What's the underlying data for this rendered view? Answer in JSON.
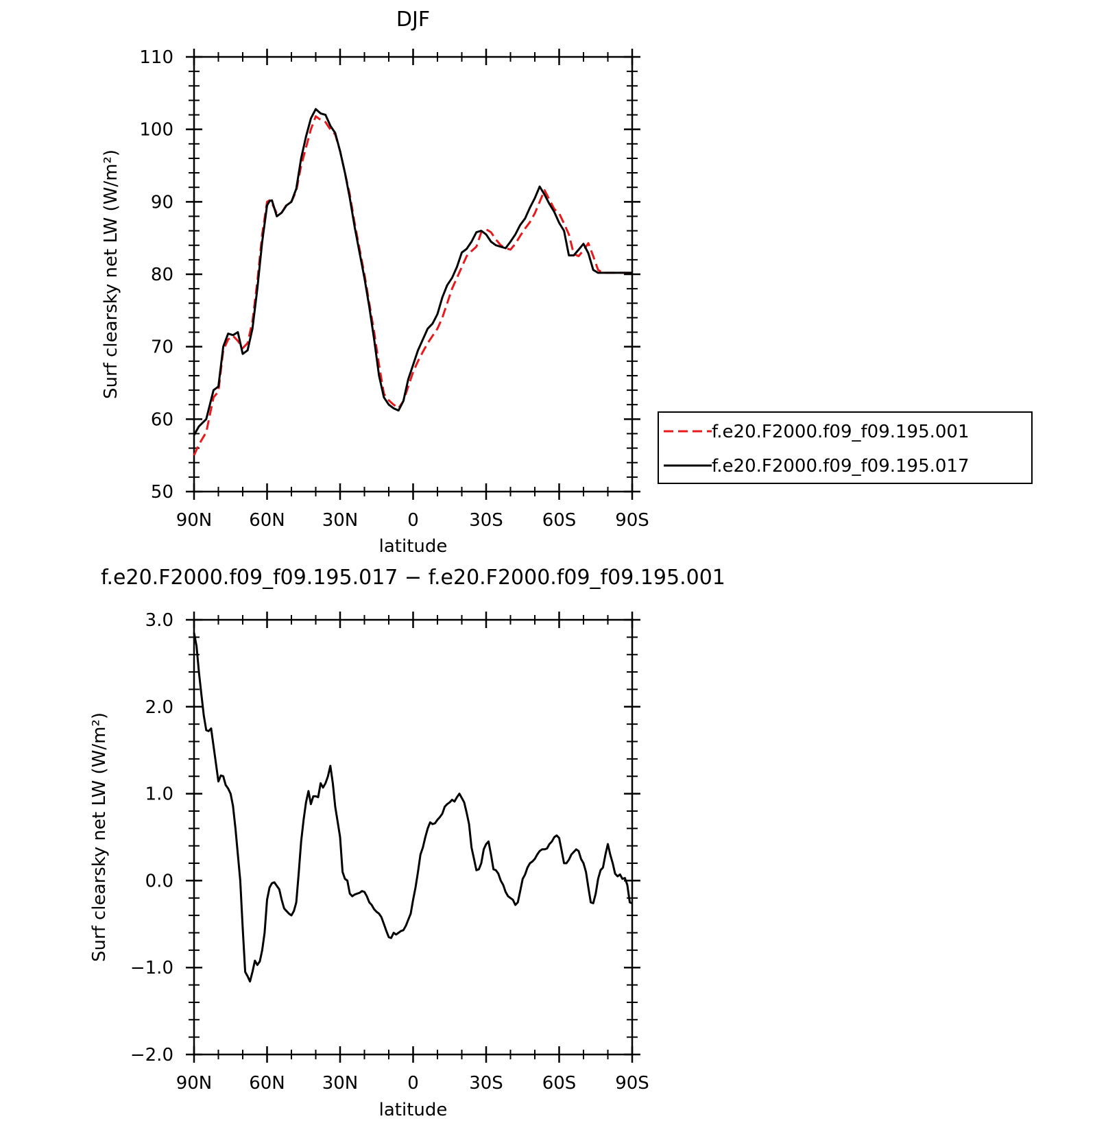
{
  "chart_data": [
    {
      "type": "line",
      "title": "DJF",
      "xlabel": "latitude",
      "ylabel": "Surf clearsky net LW (W/m²)",
      "xlim": [
        90,
        -90
      ],
      "ylim": [
        50,
        110
      ],
      "xticks": [
        {
          "value": 90,
          "label": "90N"
        },
        {
          "value": 60,
          "label": "60N"
        },
        {
          "value": 30,
          "label": "30N"
        },
        {
          "value": 0,
          "label": "0"
        },
        {
          "value": -30,
          "label": "30S"
        },
        {
          "value": -60,
          "label": "60S"
        },
        {
          "value": -90,
          "label": "90S"
        }
      ],
      "yticks": [
        {
          "value": 50,
          "label": "50"
        },
        {
          "value": 60,
          "label": "60"
        },
        {
          "value": 70,
          "label": "70"
        },
        {
          "value": 80,
          "label": "80"
        },
        {
          "value": 90,
          "label": "90"
        },
        {
          "value": 100,
          "label": "100"
        },
        {
          "value": 110,
          "label": "110"
        }
      ],
      "legend": {
        "position": "right"
      },
      "series": [
        {
          "name": "f.e20.F2000.f09_f09.195.001",
          "color": "#e8191b",
          "dash": true,
          "x": [
            90,
            88,
            85,
            82,
            80,
            78,
            76,
            74,
            72,
            70,
            68,
            66,
            64,
            62,
            60,
            59,
            58,
            56,
            54,
            52,
            50,
            48,
            46,
            44,
            42,
            40,
            38,
            36,
            34,
            32,
            30,
            28,
            26,
            24,
            22,
            20,
            18,
            16,
            14,
            12,
            10,
            8,
            6,
            4,
            2,
            0,
            -2,
            -4,
            -6,
            -8,
            -10,
            -12,
            -14,
            -16,
            -18,
            -20,
            -22,
            -24,
            -26,
            -28,
            -30,
            -32,
            -34,
            -36,
            -38,
            -40,
            -42,
            -44,
            -46,
            -48,
            -50,
            -52,
            -54,
            -56,
            -58,
            -60,
            -62,
            -64,
            -66,
            -68,
            -70,
            -72,
            -74,
            -76,
            -78,
            -80,
            -82,
            -84,
            -86,
            -88,
            -90
          ],
          "y": [
            55.0,
            56.5,
            58.2,
            63.0,
            63.8,
            69.5,
            71.0,
            71.5,
            70.8,
            69.8,
            70.5,
            73.5,
            79.0,
            85.5,
            90.0,
            90.2,
            89.8,
            88.4,
            88.5,
            89.6,
            90.0,
            91.5,
            95.0,
            97.5,
            100.0,
            101.8,
            101.3,
            101.0,
            100.0,
            99.3,
            97.0,
            94.0,
            91.0,
            87.0,
            83.5,
            80.0,
            76.0,
            72.0,
            67.5,
            63.5,
            62.6,
            62.0,
            61.5,
            62.5,
            64.5,
            66.5,
            68.0,
            69.3,
            70.5,
            71.5,
            72.5,
            74.0,
            76.0,
            78.0,
            79.5,
            81.0,
            82.5,
            83.2,
            83.8,
            85.8,
            86.2,
            85.8,
            84.8,
            84.0,
            83.6,
            83.4,
            84.2,
            85.3,
            86.3,
            87.2,
            88.4,
            90.0,
            91.6,
            90.3,
            89.0,
            88.4,
            87.0,
            85.5,
            82.8,
            82.5,
            83.3,
            84.3,
            82.5,
            80.6,
            80.2,
            80.2,
            80.2,
            80.2,
            80.2,
            80.2,
            80.2
          ]
        },
        {
          "name": "f.e20.F2000.f09_f09.195.017",
          "color": "#000000",
          "dash": false,
          "x": [
            90,
            88,
            85,
            82,
            80,
            78,
            76,
            74,
            72,
            70,
            68,
            66,
            64,
            62,
            60,
            59,
            58,
            56,
            54,
            52,
            50,
            48,
            46,
            44,
            42,
            40,
            38,
            36,
            34,
            32,
            30,
            28,
            26,
            24,
            22,
            20,
            18,
            16,
            14,
            12,
            10,
            8,
            6,
            4,
            2,
            0,
            -2,
            -4,
            -6,
            -8,
            -10,
            -12,
            -14,
            -16,
            -18,
            -20,
            -22,
            -24,
            -26,
            -28,
            -30,
            -32,
            -34,
            -36,
            -38,
            -40,
            -42,
            -44,
            -46,
            -48,
            -50,
            -52,
            -54,
            -56,
            -58,
            -60,
            -62,
            -64,
            -66,
            -68,
            -70,
            -72,
            -74,
            -76,
            -78,
            -80,
            -82,
            -84,
            -86,
            -88,
            -90
          ],
          "y": [
            57.8,
            59.0,
            60.0,
            64.0,
            64.5,
            70.0,
            71.8,
            71.6,
            72.0,
            69.0,
            69.5,
            72.5,
            78.0,
            84.5,
            89.5,
            90.1,
            90.2,
            88.0,
            88.5,
            89.5,
            90.0,
            91.8,
            96.0,
            99.0,
            101.5,
            102.8,
            102.2,
            102.0,
            100.5,
            99.5,
            97.0,
            94.0,
            90.5,
            86.5,
            83.0,
            79.5,
            75.5,
            71.0,
            66.0,
            63.0,
            62.0,
            61.5,
            61.2,
            62.5,
            65.5,
            67.5,
            69.5,
            71.0,
            72.5,
            73.2,
            74.5,
            76.8,
            78.5,
            79.5,
            81.0,
            83.0,
            83.5,
            84.5,
            85.8,
            86.0,
            85.5,
            84.5,
            84.0,
            83.8,
            83.6,
            84.5,
            85.5,
            86.8,
            87.7,
            89.2,
            90.5,
            92.1,
            91.0,
            89.7,
            88.6,
            87.1,
            86.0,
            82.6,
            82.6,
            83.4,
            84.2,
            82.9,
            80.6,
            80.2,
            80.2,
            80.2,
            80.2,
            80.2,
            80.2,
            80.2,
            80.2
          ]
        }
      ]
    },
    {
      "type": "line",
      "title": "f.e20.F2000.f09_f09.195.017 − f.e20.F2000.f09_f09.195.001",
      "xlabel": "latitude",
      "ylabel": "Surf clearsky net LW (W/m²)",
      "xlim": [
        90,
        -90
      ],
      "ylim": [
        -2.0,
        3.0
      ],
      "xticks": [
        {
          "value": 90,
          "label": "90N"
        },
        {
          "value": 60,
          "label": "60N"
        },
        {
          "value": 30,
          "label": "30N"
        },
        {
          "value": 0,
          "label": "0"
        },
        {
          "value": -30,
          "label": "30S"
        },
        {
          "value": -60,
          "label": "60S"
        },
        {
          "value": -90,
          "label": "90S"
        }
      ],
      "yticks": [
        {
          "value": -2.0,
          "label": "−2.0"
        },
        {
          "value": -1.0,
          "label": "−1.0"
        },
        {
          "value": 0.0,
          "label": "0.0"
        },
        {
          "value": 1.0,
          "label": "1.0"
        },
        {
          "value": 2.0,
          "label": "2.0"
        },
        {
          "value": 3.0,
          "label": "3.0"
        }
      ],
      "series": [
        {
          "color": "#000000",
          "x": [
            90,
            89,
            88,
            87,
            86,
            85,
            84,
            83,
            82,
            81,
            80,
            79,
            78,
            77,
            76,
            75,
            74,
            73,
            72,
            71,
            70,
            69,
            68,
            67,
            66,
            65,
            64,
            63,
            62,
            61,
            60,
            59,
            58,
            57,
            56,
            55,
            54,
            53,
            52,
            51,
            50,
            49,
            48,
            47,
            46,
            45,
            44,
            43,
            42,
            41,
            40,
            39,
            38,
            37,
            36,
            35,
            34,
            33,
            32,
            31,
            30,
            29,
            28,
            27,
            26,
            25,
            24,
            23,
            22,
            21,
            20,
            19,
            18,
            17,
            16,
            15,
            14,
            13,
            12,
            11,
            10,
            9,
            8,
            7,
            6,
            5,
            4,
            3,
            2,
            1,
            0,
            -1,
            -2,
            -3,
            -4,
            -5,
            -6,
            -7,
            -8,
            -9,
            -10,
            -11,
            -12,
            -13,
            -14,
            -15,
            -16,
            -17,
            -18,
            -19,
            -20,
            -21,
            -22,
            -23,
            -24,
            -25,
            -26,
            -27,
            -28,
            -29,
            -30,
            -31,
            -32,
            -33,
            -34,
            -35,
            -36,
            -37,
            -38,
            -39,
            -40,
            -41,
            -42,
            -43,
            -44,
            -45,
            -46,
            -47,
            -48,
            -49,
            -50,
            -51,
            -52,
            -53,
            -54,
            -55,
            -56,
            -57,
            -58,
            -59,
            -60,
            -61,
            -62,
            -63,
            -64,
            -65,
            -66,
            -67,
            -68,
            -69,
            -70,
            -71,
            -72,
            -73,
            -74,
            -75,
            -76,
            -77,
            -78,
            -79,
            -80,
            -81,
            -82,
            -83,
            -84,
            -85,
            -86,
            -87,
            -88,
            -89,
            -90
          ],
          "y": [
            2.85,
            2.7,
            2.4,
            2.15,
            1.9,
            1.73,
            1.72,
            1.75,
            1.55,
            1.35,
            1.14,
            1.21,
            1.2,
            1.1,
            1.06,
            1.0,
            0.86,
            0.6,
            0.3,
            0.0,
            -0.55,
            -1.05,
            -1.1,
            -1.16,
            -1.05,
            -0.92,
            -0.97,
            -0.93,
            -0.8,
            -0.6,
            -0.22,
            -0.08,
            -0.03,
            -0.02,
            -0.06,
            -0.1,
            -0.22,
            -0.32,
            -0.35,
            -0.38,
            -0.4,
            -0.35,
            -0.25,
            0.08,
            0.45,
            0.7,
            0.9,
            1.03,
            0.88,
            0.97,
            0.97,
            0.96,
            1.12,
            1.07,
            1.12,
            1.2,
            1.32,
            1.12,
            0.85,
            0.68,
            0.5,
            0.1,
            0.02,
            0.0,
            -0.15,
            -0.18,
            -0.16,
            -0.15,
            -0.14,
            -0.12,
            -0.13,
            -0.18,
            -0.25,
            -0.28,
            -0.33,
            -0.36,
            -0.38,
            -0.42,
            -0.5,
            -0.58,
            -0.65,
            -0.66,
            -0.6,
            -0.62,
            -0.6,
            -0.58,
            -0.57,
            -0.52,
            -0.45,
            -0.38,
            -0.22,
            -0.08,
            0.1,
            0.3,
            0.38,
            0.5,
            0.6,
            0.67,
            0.65,
            0.66,
            0.7,
            0.73,
            0.77,
            0.85,
            0.88,
            0.9,
            0.93,
            0.91,
            0.96,
            1.0,
            0.95,
            0.9,
            0.78,
            0.65,
            0.38,
            0.25,
            0.12,
            0.13,
            0.2,
            0.36,
            0.42,
            0.45,
            0.3,
            0.13,
            0.12,
            0.08,
            0.0,
            -0.05,
            -0.13,
            -0.18,
            -0.2,
            -0.22,
            -0.28,
            -0.25,
            -0.12,
            0.02,
            0.07,
            0.15,
            0.2,
            0.22,
            0.25,
            0.3,
            0.34,
            0.36,
            0.36,
            0.37,
            0.42,
            0.45,
            0.5,
            0.52,
            0.49,
            0.35,
            0.2,
            0.2,
            0.24,
            0.3,
            0.33,
            0.36,
            0.34,
            0.25,
            0.2,
            0.1,
            -0.08,
            -0.25,
            -0.26,
            -0.15,
            0.02,
            0.12,
            0.15,
            0.3,
            0.42,
            0.3,
            0.2,
            0.08,
            0.05,
            0.07,
            0.02,
            0.03,
            -0.05,
            -0.25,
            -0.26
          ]
        }
      ]
    }
  ]
}
